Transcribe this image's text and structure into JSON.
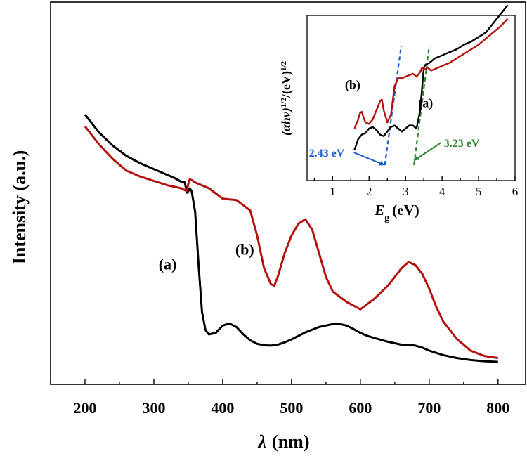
{
  "chart_data": [
    {
      "id": "main",
      "type": "line",
      "title": "",
      "xlabel": "λ (nm)",
      "xlabel_symbol": "λ",
      "xlabel_unit": "(nm)",
      "ylabel": "Intensity (a.u.)",
      "xlim": [
        150,
        840
      ],
      "ylim": [
        0,
        1
      ],
      "xticks": [
        200,
        300,
        400,
        500,
        600,
        700,
        800
      ],
      "y_tick_labels": false,
      "grid": false,
      "series": [
        {
          "name": "(a)",
          "color": "#000000",
          "x": [
            200,
            220,
            240,
            260,
            280,
            300,
            320,
            330,
            340,
            345,
            348,
            350,
            352,
            355,
            360,
            365,
            370,
            375,
            380,
            390,
            400,
            410,
            420,
            430,
            440,
            450,
            460,
            470,
            480,
            490,
            500,
            520,
            540,
            560,
            570,
            580,
            590,
            600,
            610,
            620,
            640,
            660,
            670,
            680,
            690,
            700,
            720,
            740,
            760,
            780,
            800
          ],
          "y": [
            0.85,
            0.79,
            0.745,
            0.71,
            0.685,
            0.665,
            0.645,
            0.635,
            0.622,
            0.62,
            0.585,
            0.59,
            0.6,
            0.59,
            0.52,
            0.34,
            0.18,
            0.12,
            0.105,
            0.11,
            0.135,
            0.142,
            0.13,
            0.105,
            0.085,
            0.073,
            0.068,
            0.067,
            0.07,
            0.078,
            0.088,
            0.112,
            0.13,
            0.14,
            0.14,
            0.135,
            0.123,
            0.11,
            0.1,
            0.093,
            0.08,
            0.07,
            0.07,
            0.067,
            0.06,
            0.05,
            0.035,
            0.025,
            0.018,
            0.014,
            0.012
          ]
        },
        {
          "name": "(b)",
          "color": "#b5120f",
          "x": [
            200,
            220,
            240,
            260,
            280,
            300,
            320,
            340,
            348,
            350,
            352,
            355,
            360,
            380,
            400,
            420,
            440,
            450,
            460,
            470,
            475,
            480,
            490,
            500,
            510,
            520,
            530,
            540,
            550,
            560,
            580,
            600,
            620,
            640,
            660,
            670,
            680,
            690,
            700,
            710,
            720,
            740,
            760,
            780,
            800
          ],
          "y": [
            0.81,
            0.75,
            0.7,
            0.66,
            0.64,
            0.625,
            0.61,
            0.6,
            0.59,
            0.615,
            0.63,
            0.628,
            0.62,
            0.6,
            0.565,
            0.56,
            0.525,
            0.44,
            0.33,
            0.275,
            0.27,
            0.3,
            0.38,
            0.44,
            0.48,
            0.495,
            0.46,
            0.38,
            0.3,
            0.25,
            0.215,
            0.19,
            0.225,
            0.27,
            0.33,
            0.35,
            0.34,
            0.31,
            0.26,
            0.2,
            0.15,
            0.09,
            0.05,
            0.032,
            0.025
          ]
        }
      ],
      "annotations": [
        {
          "text": "(a)",
          "x": 320,
          "y": 0.325
        },
        {
          "text": "(b)",
          "x": 432,
          "y": 0.375
        }
      ]
    },
    {
      "id": "inset",
      "type": "line",
      "title": "",
      "xlabel": "Eg (eV)",
      "xlabel_symbol": "E",
      "xlabel_subscript": "g",
      "xlabel_unit": "(eV)",
      "ylabel": "(αhν)1/2/(eV)1/2",
      "ylabel_part1": "(αhν)",
      "ylabel_sup": "1/2",
      "ylabel_part2": "/(eV)",
      "xlim": [
        0.3,
        6
      ],
      "ylim": [
        0,
        1
      ],
      "xticks": [
        1,
        2,
        3,
        4,
        5,
        6
      ],
      "y_tick_labels": false,
      "grid": false,
      "series": [
        {
          "name": "(a)",
          "color": "#000000",
          "x": [
            1.6,
            1.7,
            1.8,
            1.9,
            2.0,
            2.1,
            2.2,
            2.3,
            2.4,
            2.5,
            2.6,
            2.7,
            2.8,
            2.9,
            3.0,
            3.1,
            3.2,
            3.3,
            3.4,
            3.45,
            3.5,
            3.55,
            3.6,
            3.65,
            3.7,
            3.8,
            4.0,
            4.2,
            4.4,
            4.6,
            4.8,
            5.0,
            5.2,
            5.4,
            5.6,
            5.8
          ],
          "y": [
            0.1,
            0.17,
            0.2,
            0.21,
            0.24,
            0.25,
            0.23,
            0.2,
            0.19,
            0.22,
            0.25,
            0.26,
            0.24,
            0.22,
            0.24,
            0.26,
            0.26,
            0.24,
            0.36,
            0.5,
            0.64,
            0.66,
            0.665,
            0.67,
            0.68,
            0.7,
            0.72,
            0.74,
            0.76,
            0.79,
            0.81,
            0.84,
            0.87,
            0.93,
            0.99,
            1.05
          ]
        },
        {
          "name": "(b)",
          "color": "#b5120f",
          "x": [
            1.6,
            1.7,
            1.75,
            1.8,
            1.85,
            1.9,
            2.0,
            2.1,
            2.2,
            2.3,
            2.35,
            2.4,
            2.5,
            2.6,
            2.7,
            2.8,
            2.9,
            3.0,
            3.1,
            3.2,
            3.3,
            3.4,
            3.45,
            3.5,
            3.55,
            3.6,
            3.7,
            3.8,
            4.0,
            4.2,
            4.4,
            4.6,
            4.8,
            5.0,
            5.2,
            5.4,
            5.6,
            5.8
          ],
          "y": [
            0.24,
            0.3,
            0.34,
            0.35,
            0.31,
            0.28,
            0.27,
            0.3,
            0.36,
            0.42,
            0.43,
            0.36,
            0.28,
            0.33,
            0.52,
            0.57,
            0.57,
            0.58,
            0.59,
            0.6,
            0.58,
            0.61,
            0.64,
            0.63,
            0.63,
            0.64,
            0.62,
            0.63,
            0.65,
            0.67,
            0.7,
            0.73,
            0.76,
            0.79,
            0.83,
            0.87,
            0.91,
            0.96
          ]
        }
      ],
      "fit_lines": [
        {
          "color": "#1a5fd0",
          "x1": 2.43,
          "y1": 0.0,
          "x2": 2.88,
          "y2": 0.78
        },
        {
          "color": "#2f8a2f",
          "x1": 3.23,
          "y1": 0.0,
          "x2": 3.65,
          "y2": 0.78
        }
      ],
      "gap_labels": [
        {
          "text": "2.43 eV",
          "color": "#1a5fd0",
          "x": 0.35,
          "y": 0.055,
          "arrow_to_x": 2.43,
          "arrow_to_y": 0.0
        },
        {
          "text": "3.23 eV",
          "color": "#2f8a2f",
          "x": 4.05,
          "y": 0.12,
          "arrow_to_x": 3.23,
          "arrow_to_y": 0.03
        }
      ],
      "annotations": [
        {
          "text": "(b)",
          "x": 1.55,
          "y": 0.5
        },
        {
          "text": "(a)",
          "x": 3.55,
          "y": 0.38
        }
      ]
    }
  ]
}
